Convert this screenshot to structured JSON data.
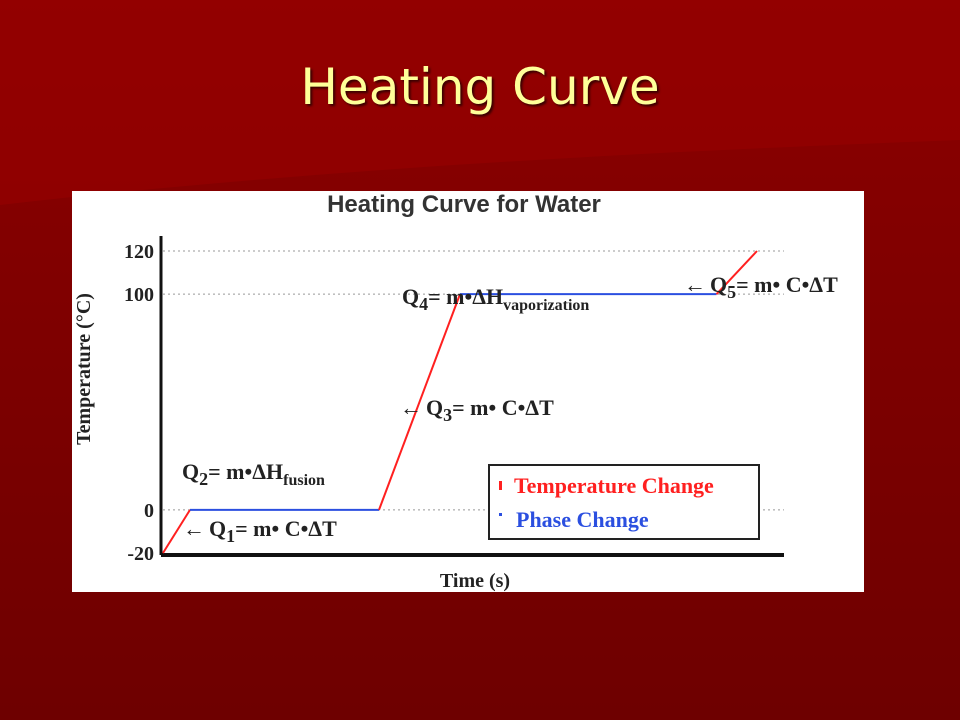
{
  "slide": {
    "title": "Heating Curve"
  },
  "colors": {
    "background": "#7a0000",
    "title_text": "#ffff99",
    "temperature_change": "#ff2020",
    "phase_change": "#2b4fe0"
  },
  "chart_data": {
    "type": "line",
    "title": "Heating Curve for Water",
    "xlabel": "Time (s)",
    "ylabel": "Temperature (°C)",
    "ylim": [
      -20,
      120
    ],
    "y_ticks": [
      {
        "value": 120,
        "label": "120"
      },
      {
        "value": 100,
        "label": "100"
      },
      {
        "value": 0,
        "label": "0"
      },
      {
        "value": -20,
        "label": "-20"
      }
    ],
    "reference_lines": [
      0,
      100,
      120
    ],
    "segments": [
      {
        "kind": "temperature",
        "points": [
          [
            0,
            -20
          ],
          [
            1,
            0
          ]
        ]
      },
      {
        "kind": "phase",
        "points": [
          [
            1,
            0
          ],
          [
            8,
            0
          ]
        ]
      },
      {
        "kind": "temperature",
        "points": [
          [
            8,
            0
          ],
          [
            11,
            100
          ]
        ]
      },
      {
        "kind": "phase",
        "points": [
          [
            11,
            100
          ],
          [
            20.5,
            100
          ]
        ]
      },
      {
        "kind": "temperature",
        "points": [
          [
            20.5,
            100
          ],
          [
            22,
            120
          ]
        ]
      }
    ],
    "legend": {
      "placement": "bottom-right",
      "entries": [
        {
          "kind": "temperature",
          "label": "Temperature Change"
        },
        {
          "kind": "phase",
          "label": "Phase Change"
        }
      ]
    },
    "annotations": {
      "q1": {
        "arrow": "←",
        "main": "Q",
        "sub": "1",
        "rest": "= m• C•ΔT"
      },
      "q2": {
        "main": "Q",
        "sub": "2",
        "rest": "= m•ΔH",
        "sub2": "fusion"
      },
      "q3": {
        "arrow": "←",
        "main": "Q",
        "sub": "3",
        "rest": "= m• C•ΔT"
      },
      "q4": {
        "main": "Q",
        "sub": "4",
        "rest": "= m•ΔH",
        "sub2": "vaporization"
      },
      "q5": {
        "arrow": "←",
        "main": "Q",
        "sub": "5",
        "rest": "= m• C•ΔT"
      }
    }
  }
}
